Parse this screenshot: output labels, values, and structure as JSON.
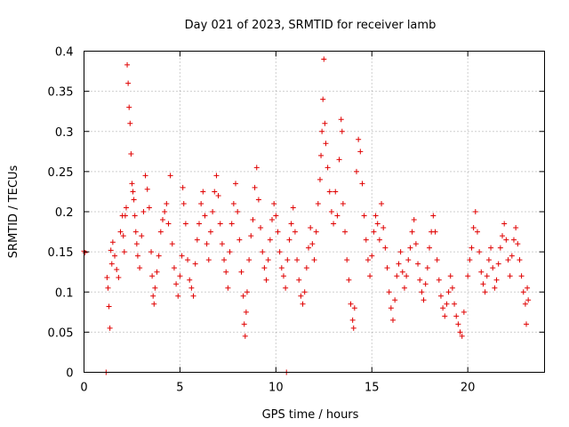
{
  "chart_data": {
    "type": "scatter",
    "title": "Day 021 of 2023, SRMTID for receiver lamb",
    "xlabel": "GPS time / hours",
    "ylabel": "SRMTID / TECUs",
    "xlim": [
      0,
      24
    ],
    "ylim": [
      0,
      0.4
    ],
    "xticks": [
      0,
      5,
      10,
      15,
      20
    ],
    "yticks": [
      0,
      0.05,
      0.1,
      0.15,
      0.2,
      0.25,
      0.3,
      0.35,
      0.4
    ],
    "xtick_labels": [
      "0",
      "5",
      "10",
      "15",
      "20"
    ],
    "ytick_labels": [
      "0",
      "0.05",
      "0.1",
      "0.15",
      "0.2",
      "0.25",
      "0.3",
      "0.35",
      "0.4"
    ],
    "grid": true,
    "marker": "plus",
    "color": "#e00000",
    "series": [
      {
        "name": "SRMTID",
        "points": [
          [
            0.0,
            0.151
          ],
          [
            0.05,
            0.149
          ],
          [
            1.15,
            0.0
          ],
          [
            1.2,
            0.118
          ],
          [
            1.25,
            0.105
          ],
          [
            1.3,
            0.082
          ],
          [
            1.35,
            0.055
          ],
          [
            1.4,
            0.152
          ],
          [
            1.45,
            0.135
          ],
          [
            1.5,
            0.162
          ],
          [
            1.6,
            0.145
          ],
          [
            1.7,
            0.128
          ],
          [
            1.8,
            0.118
          ],
          [
            1.9,
            0.175
          ],
          [
            2.0,
            0.195
          ],
          [
            2.05,
            0.17
          ],
          [
            2.1,
            0.15
          ],
          [
            2.15,
            0.195
          ],
          [
            2.2,
            0.205
          ],
          [
            2.25,
            0.383
          ],
          [
            2.3,
            0.36
          ],
          [
            2.35,
            0.33
          ],
          [
            2.4,
            0.31
          ],
          [
            2.45,
            0.272
          ],
          [
            2.5,
            0.235
          ],
          [
            2.55,
            0.225
          ],
          [
            2.6,
            0.215
          ],
          [
            2.65,
            0.195
          ],
          [
            2.7,
            0.175
          ],
          [
            2.75,
            0.16
          ],
          [
            2.8,
            0.145
          ],
          [
            2.9,
            0.13
          ],
          [
            3.0,
            0.17
          ],
          [
            3.1,
            0.2
          ],
          [
            3.2,
            0.245
          ],
          [
            3.3,
            0.228
          ],
          [
            3.4,
            0.205
          ],
          [
            3.5,
            0.15
          ],
          [
            3.55,
            0.12
          ],
          [
            3.6,
            0.095
          ],
          [
            3.65,
            0.085
          ],
          [
            3.7,
            0.105
          ],
          [
            3.8,
            0.125
          ],
          [
            3.9,
            0.145
          ],
          [
            4.0,
            0.175
          ],
          [
            4.1,
            0.19
          ],
          [
            4.2,
            0.2
          ],
          [
            4.3,
            0.21
          ],
          [
            4.4,
            0.185
          ],
          [
            4.5,
            0.245
          ],
          [
            4.6,
            0.16
          ],
          [
            4.7,
            0.13
          ],
          [
            4.8,
            0.11
          ],
          [
            4.9,
            0.095
          ],
          [
            5.0,
            0.12
          ],
          [
            5.1,
            0.145
          ],
          [
            5.15,
            0.23
          ],
          [
            5.2,
            0.21
          ],
          [
            5.3,
            0.185
          ],
          [
            5.4,
            0.14
          ],
          [
            5.5,
            0.115
          ],
          [
            5.6,
            0.105
          ],
          [
            5.7,
            0.095
          ],
          [
            5.8,
            0.135
          ],
          [
            5.9,
            0.165
          ],
          [
            6.0,
            0.185
          ],
          [
            6.1,
            0.21
          ],
          [
            6.2,
            0.225
          ],
          [
            6.3,
            0.195
          ],
          [
            6.4,
            0.16
          ],
          [
            6.5,
            0.14
          ],
          [
            6.6,
            0.175
          ],
          [
            6.7,
            0.2
          ],
          [
            6.8,
            0.225
          ],
          [
            6.9,
            0.245
          ],
          [
            7.0,
            0.22
          ],
          [
            7.1,
            0.185
          ],
          [
            7.2,
            0.16
          ],
          [
            7.3,
            0.14
          ],
          [
            7.4,
            0.125
          ],
          [
            7.5,
            0.105
          ],
          [
            7.6,
            0.15
          ],
          [
            7.7,
            0.185
          ],
          [
            7.8,
            0.21
          ],
          [
            7.9,
            0.235
          ],
          [
            8.0,
            0.2
          ],
          [
            8.1,
            0.165
          ],
          [
            8.2,
            0.125
          ],
          [
            8.3,
            0.095
          ],
          [
            8.35,
            0.06
          ],
          [
            8.4,
            0.045
          ],
          [
            8.45,
            0.075
          ],
          [
            8.5,
            0.1
          ],
          [
            8.6,
            0.14
          ],
          [
            8.7,
            0.17
          ],
          [
            8.8,
            0.19
          ],
          [
            8.9,
            0.23
          ],
          [
            9.0,
            0.255
          ],
          [
            9.1,
            0.215
          ],
          [
            9.2,
            0.18
          ],
          [
            9.3,
            0.15
          ],
          [
            9.4,
            0.13
          ],
          [
            9.5,
            0.115
          ],
          [
            9.6,
            0.14
          ],
          [
            9.7,
            0.165
          ],
          [
            9.8,
            0.19
          ],
          [
            9.9,
            0.21
          ],
          [
            10.0,
            0.195
          ],
          [
            10.1,
            0.175
          ],
          [
            10.2,
            0.15
          ],
          [
            10.3,
            0.13
          ],
          [
            10.4,
            0.12
          ],
          [
            10.5,
            0.105
          ],
          [
            10.55,
            0.0
          ],
          [
            10.6,
            0.14
          ],
          [
            10.7,
            0.165
          ],
          [
            10.8,
            0.185
          ],
          [
            10.9,
            0.205
          ],
          [
            11.0,
            0.175
          ],
          [
            11.1,
            0.14
          ],
          [
            11.2,
            0.115
          ],
          [
            11.3,
            0.095
          ],
          [
            11.4,
            0.085
          ],
          [
            11.5,
            0.1
          ],
          [
            11.6,
            0.13
          ],
          [
            11.7,
            0.155
          ],
          [
            11.8,
            0.18
          ],
          [
            11.9,
            0.16
          ],
          [
            12.0,
            0.14
          ],
          [
            12.1,
            0.175
          ],
          [
            12.2,
            0.21
          ],
          [
            12.3,
            0.24
          ],
          [
            12.35,
            0.27
          ],
          [
            12.4,
            0.3
          ],
          [
            12.45,
            0.34
          ],
          [
            12.5,
            0.39
          ],
          [
            12.55,
            0.31
          ],
          [
            12.6,
            0.285
          ],
          [
            12.7,
            0.255
          ],
          [
            12.8,
            0.225
          ],
          [
            12.9,
            0.2
          ],
          [
            13.0,
            0.185
          ],
          [
            13.1,
            0.225
          ],
          [
            13.2,
            0.195
          ],
          [
            13.3,
            0.265
          ],
          [
            13.4,
            0.315
          ],
          [
            13.45,
            0.3
          ],
          [
            13.5,
            0.21
          ],
          [
            13.6,
            0.175
          ],
          [
            13.7,
            0.14
          ],
          [
            13.8,
            0.115
          ],
          [
            13.9,
            0.085
          ],
          [
            14.0,
            0.065
          ],
          [
            14.05,
            0.055
          ],
          [
            14.1,
            0.08
          ],
          [
            14.2,
            0.25
          ],
          [
            14.3,
            0.29
          ],
          [
            14.4,
            0.275
          ],
          [
            14.5,
            0.235
          ],
          [
            14.6,
            0.195
          ],
          [
            14.7,
            0.165
          ],
          [
            14.8,
            0.14
          ],
          [
            14.9,
            0.12
          ],
          [
            15.0,
            0.145
          ],
          [
            15.1,
            0.175
          ],
          [
            15.2,
            0.195
          ],
          [
            15.3,
            0.185
          ],
          [
            15.4,
            0.165
          ],
          [
            15.5,
            0.21
          ],
          [
            15.6,
            0.18
          ],
          [
            15.7,
            0.155
          ],
          [
            15.8,
            0.13
          ],
          [
            15.9,
            0.1
          ],
          [
            16.0,
            0.08
          ],
          [
            16.1,
            0.065
          ],
          [
            16.2,
            0.09
          ],
          [
            16.3,
            0.12
          ],
          [
            16.4,
            0.135
          ],
          [
            16.5,
            0.15
          ],
          [
            16.6,
            0.125
          ],
          [
            16.7,
            0.105
          ],
          [
            16.8,
            0.12
          ],
          [
            16.9,
            0.14
          ],
          [
            17.0,
            0.155
          ],
          [
            17.1,
            0.175
          ],
          [
            17.2,
            0.19
          ],
          [
            17.3,
            0.16
          ],
          [
            17.4,
            0.135
          ],
          [
            17.5,
            0.115
          ],
          [
            17.6,
            0.1
          ],
          [
            17.7,
            0.09
          ],
          [
            17.8,
            0.11
          ],
          [
            17.9,
            0.13
          ],
          [
            18.0,
            0.155
          ],
          [
            18.1,
            0.175
          ],
          [
            18.2,
            0.195
          ],
          [
            18.3,
            0.175
          ],
          [
            18.4,
            0.14
          ],
          [
            18.5,
            0.115
          ],
          [
            18.6,
            0.095
          ],
          [
            18.7,
            0.08
          ],
          [
            18.8,
            0.07
          ],
          [
            18.9,
            0.085
          ],
          [
            19.0,
            0.1
          ],
          [
            19.1,
            0.12
          ],
          [
            19.2,
            0.105
          ],
          [
            19.3,
            0.085
          ],
          [
            19.4,
            0.07
          ],
          [
            19.5,
            0.06
          ],
          [
            19.6,
            0.05
          ],
          [
            19.7,
            0.045
          ],
          [
            19.8,
            0.075
          ],
          [
            20.0,
            0.12
          ],
          [
            20.1,
            0.14
          ],
          [
            20.2,
            0.155
          ],
          [
            20.3,
            0.18
          ],
          [
            20.4,
            0.2
          ],
          [
            20.5,
            0.175
          ],
          [
            20.6,
            0.15
          ],
          [
            20.7,
            0.125
          ],
          [
            20.8,
            0.11
          ],
          [
            20.9,
            0.1
          ],
          [
            21.0,
            0.12
          ],
          [
            21.1,
            0.14
          ],
          [
            21.2,
            0.155
          ],
          [
            21.3,
            0.13
          ],
          [
            21.4,
            0.105
          ],
          [
            21.5,
            0.115
          ],
          [
            21.6,
            0.135
          ],
          [
            21.7,
            0.155
          ],
          [
            21.8,
            0.17
          ],
          [
            21.9,
            0.185
          ],
          [
            22.0,
            0.165
          ],
          [
            22.1,
            0.14
          ],
          [
            22.2,
            0.12
          ],
          [
            22.3,
            0.145
          ],
          [
            22.4,
            0.165
          ],
          [
            22.5,
            0.18
          ],
          [
            22.6,
            0.16
          ],
          [
            22.7,
            0.14
          ],
          [
            22.8,
            0.12
          ],
          [
            22.9,
            0.1
          ],
          [
            23.0,
            0.085
          ],
          [
            23.05,
            0.06
          ],
          [
            23.1,
            0.105
          ],
          [
            23.15,
            0.09
          ]
        ]
      }
    ]
  }
}
